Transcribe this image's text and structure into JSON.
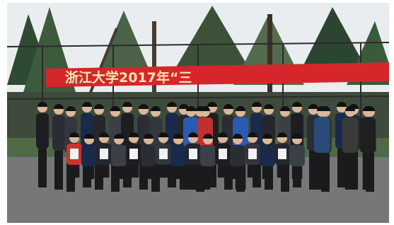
{
  "banner": {
    "text": "浙江大学2017年“三"
  }
}
